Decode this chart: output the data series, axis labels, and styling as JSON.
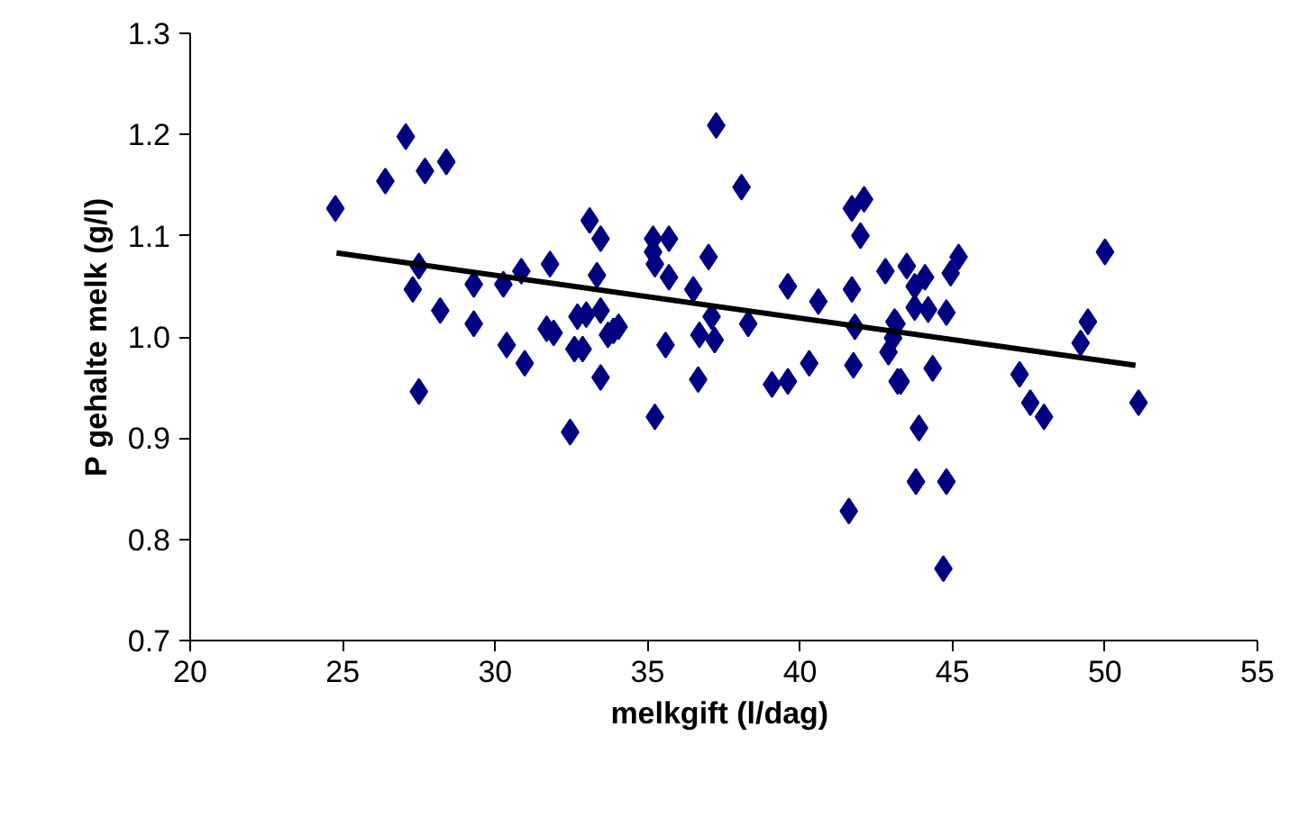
{
  "chart_data": {
    "type": "scatter",
    "xlabel": "melkgift  (l/dag)",
    "ylabel": "P gehalte melk (g/l)",
    "xlim": [
      20,
      55
    ],
    "xticks": [
      20,
      25,
      30,
      35,
      40,
      45,
      50,
      55
    ],
    "ylim": [
      0.7,
      1.3
    ],
    "yticks": [
      0.7,
      0.8,
      0.9,
      {
        "value": 1.0,
        "label": "1.0"
      },
      1.1,
      1.2,
      1.3
    ],
    "grid": false,
    "series": [
      {
        "marker": "diamond",
        "color": "#000080",
        "x": [
          24.76,
          26.4,
          27.07,
          27.7,
          28.4,
          27.5,
          27.3,
          28.2,
          29.3,
          29.3,
          27.5,
          30.27,
          30.86,
          31.8,
          30.38,
          30.97,
          31.69,
          31.92,
          32.46,
          32.7,
          32.6,
          37.25,
          38.08,
          33.1,
          33.46,
          33.34,
          35.18,
          35.7,
          35.18,
          35.24,
          35.7,
          37.0,
          36.5,
          37.1,
          38.3,
          36.7,
          37.2,
          32.99,
          33.46,
          33.88,
          34.05,
          33.7,
          32.87,
          33.46,
          35.59,
          36.66,
          39.08,
          39.6,
          40.3,
          39.6,
          40.6,
          41.7,
          41.8,
          41.75,
          41.98,
          41.7,
          42.1,
          42.8,
          43.1,
          42.9,
          43.2,
          35.24,
          43.5,
          44.1,
          43.76,
          45.2,
          44.94,
          43.76,
          44.2,
          44.8,
          43.16,
          43.05,
          43.3,
          44.35,
          43.9,
          50.0,
          49.44,
          49.2,
          47.2,
          47.55,
          48.0,
          51.1,
          43.8,
          44.8,
          41.6,
          44.7
        ],
        "values": [
          1.127,
          1.154,
          1.198,
          1.164,
          1.173,
          1.07,
          1.047,
          1.026,
          1.013,
          1.052,
          0.946,
          1.052,
          1.065,
          1.072,
          0.992,
          0.974,
          1.008,
          1.004,
          0.906,
          1.02,
          0.988,
          1.209,
          1.148,
          1.115,
          1.097,
          1.061,
          1.097,
          1.097,
          1.084,
          1.072,
          1.059,
          1.079,
          1.047,
          1.02,
          1.013,
          1.002,
          0.997,
          1.022,
          1.026,
          1.006,
          1.01,
          1.002,
          0.988,
          0.96,
          0.992,
          0.958,
          0.953,
          0.956,
          0.974,
          1.05,
          1.035,
          1.047,
          1.01,
          0.972,
          1.1,
          1.127,
          1.136,
          1.065,
          1.015,
          0.985,
          0.956,
          0.921,
          1.07,
          1.059,
          1.05,
          1.079,
          1.063,
          1.029,
          1.027,
          1.024,
          1.013,
          0.999,
          0.956,
          0.969,
          0.91,
          1.084,
          1.015,
          0.994,
          0.963,
          0.935,
          0.921,
          0.935,
          0.857,
          0.857,
          0.828,
          0.771
        ]
      },
      {
        "type": "line",
        "marker": "none",
        "color": "#000000",
        "x": [
          24.8,
          51.0
        ],
        "values": [
          1.083,
          0.972
        ]
      }
    ]
  }
}
